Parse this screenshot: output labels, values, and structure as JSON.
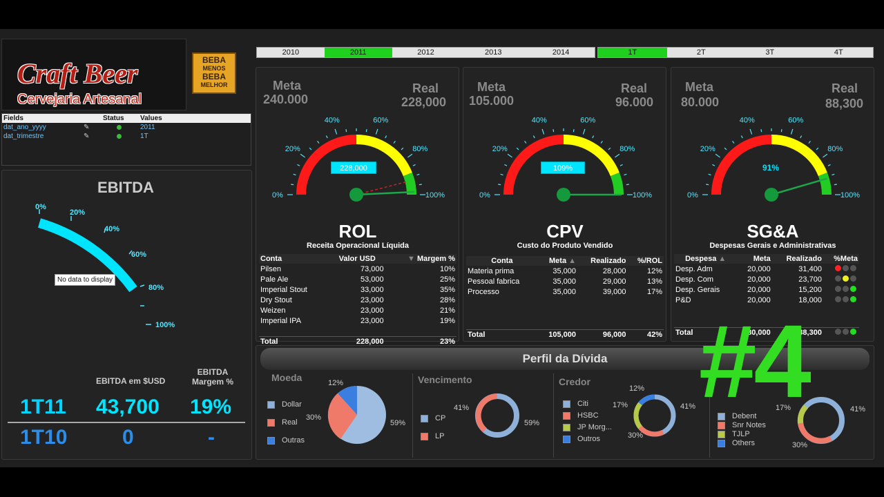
{
  "logo": {
    "title": "Craft Beer",
    "subtitle": "Cervejaria Artesanal",
    "badge": [
      "BEBA",
      "MENOS",
      "BEBA",
      "MELHOR"
    ]
  },
  "fields": {
    "headers": [
      "Fields",
      "Status",
      "Values"
    ],
    "rows": [
      {
        "field": "dat_ano_yyyy",
        "value": "2011"
      },
      {
        "field": "dat_trimestre",
        "value": "1T"
      }
    ]
  },
  "years": [
    "2010",
    "2011",
    "2012",
    "2013",
    "2014"
  ],
  "quarters": [
    "1T",
    "2T",
    "3T",
    "4T"
  ],
  "ebitda": {
    "title": "EBITDA",
    "ticks": [
      "0%",
      "20%",
      "40%",
      "60%",
      "80%",
      "100%"
    ],
    "nodata": "No data to display",
    "col1": "EBITDA em $USD",
    "col2": "EBITDA Margem %",
    "row1": {
      "period": "1T11",
      "value": "43,700",
      "margin": "19%"
    },
    "row2": {
      "period": "1T10",
      "value": "0",
      "margin": "-"
    }
  },
  "gauge_ticks": [
    "0%",
    "20%",
    "40%",
    "60%",
    "80%",
    "100%"
  ],
  "rol": {
    "meta_label": "Meta",
    "meta": "240.000",
    "real_label": "Real",
    "real": "228,000",
    "display": "228,000",
    "title": "ROL",
    "subtitle": "Receita Operacional Líquida",
    "headers": [
      "Conta",
      "Valor USD",
      "Margem %"
    ],
    "rows": [
      [
        "Pilsen",
        "73,000",
        "10%"
      ],
      [
        "Pale Ale",
        "53,000",
        "25%"
      ],
      [
        "Imperial Stout",
        "33,000",
        "35%"
      ],
      [
        "Dry Stout",
        "23,000",
        "28%"
      ],
      [
        "Weizen",
        "23,000",
        "21%"
      ],
      [
        "Imperial IPA",
        "23,000",
        "19%"
      ]
    ],
    "total": [
      "Total",
      "228,000",
      "23%"
    ]
  },
  "cpv": {
    "meta_label": "Meta",
    "meta": "105.000",
    "real_label": "Real",
    "real": "96.000",
    "display": "109%",
    "title": "CPV",
    "subtitle": "Custo do Produto Vendido",
    "headers": [
      "Conta",
      "Meta",
      "Realizado",
      "%/ROL"
    ],
    "rows": [
      [
        "Materia prima",
        "35,000",
        "28,000",
        "12%"
      ],
      [
        "Pessoal fabrica",
        "35,000",
        "29,000",
        "13%"
      ],
      [
        "Processo",
        "35,000",
        "39,000",
        "17%"
      ]
    ],
    "total": [
      "Total",
      "105,000",
      "96,000",
      "42%"
    ]
  },
  "sga": {
    "meta_label": "Meta",
    "meta": "80.000",
    "real_label": "Real",
    "real": "88,300",
    "display": "91%",
    "title": "SG&A",
    "subtitle": "Despesas Gerais e Administrativas",
    "headers": [
      "Despesa",
      "Meta",
      "Realizado",
      "%Meta"
    ],
    "rows": [
      [
        "Desp. Adm",
        "20,000",
        "31,400"
      ],
      [
        "Desp. Com",
        "20,000",
        "23,700"
      ],
      [
        "Desp. Gerais",
        "20,000",
        "15,200"
      ],
      [
        "P&D",
        "20,000",
        "18,000"
      ]
    ],
    "total": [
      "Total",
      "80,000",
      "88,300"
    ]
  },
  "perfil": {
    "title": "Perfil da Dívida",
    "moeda": {
      "label": "Moeda",
      "legend": [
        "Dollar",
        "Real",
        "Outras"
      ],
      "p1": "12%",
      "p2": "30%",
      "p3": "59%"
    },
    "venc": {
      "label": "Vencimento",
      "legend": [
        "CP",
        "LP"
      ],
      "p1": "41%",
      "p2": "59%"
    },
    "credor": {
      "label": "Credor",
      "legend": [
        "Citi",
        "HSBC",
        "JP Morg...",
        "Outros"
      ],
      "p1": "12%",
      "p2": "17%",
      "p3": "41%",
      "p4": "30%"
    },
    "tipo": {
      "legend": [
        "Debent",
        "Snr Notes",
        "TJLP",
        "Others"
      ],
      "p1": "17%",
      "p2": "41%",
      "p3": "30%"
    }
  },
  "overlay": "#4",
  "colors": {
    "green": "#1fd01f",
    "cyan": "#00e5ff",
    "red": "#ff1a1a",
    "yellow": "#ffff00",
    "gauge_green": "#22cc22"
  }
}
